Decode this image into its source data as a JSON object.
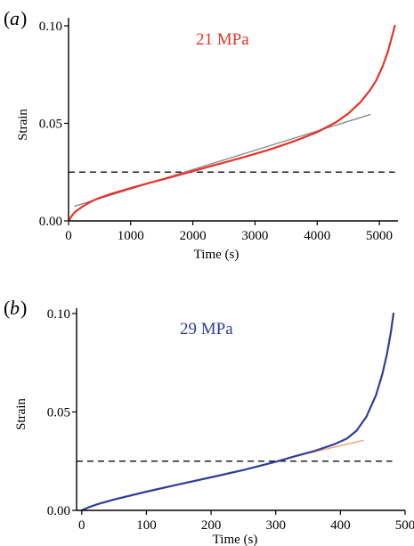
{
  "chart_data": [
    {
      "type": "line",
      "panel_label": "a",
      "annotation": "21 MPa",
      "xlabel": "Time (s)",
      "ylabel": "Strain",
      "xlim": [
        0,
        5300
      ],
      "ylim": [
        0,
        0.1
      ],
      "x_ticks": [
        0,
        1000,
        2000,
        3000,
        4000,
        5000
      ],
      "y_ticks": [
        0.0,
        0.05,
        0.1
      ],
      "y_tick_labels": [
        "0.00",
        "0.05",
        "0.10"
      ],
      "grid": false,
      "colors": {
        "main": "#e8322a",
        "fit": "#8a8a8a",
        "threshold": "#222222",
        "annotation": "#e8322a"
      },
      "series": [
        {
          "role": "main",
          "x": [
            0,
            50,
            100,
            200,
            300,
            400,
            500,
            700,
            1000,
            1300,
            1600,
            2000,
            2400,
            2800,
            3200,
            3600,
            4000,
            4300,
            4500,
            4700,
            4850,
            4950,
            5050,
            5130,
            5200,
            5250
          ],
          "values": [
            0.0,
            0.0025,
            0.0045,
            0.0068,
            0.0088,
            0.0105,
            0.0118,
            0.014,
            0.0168,
            0.0195,
            0.022,
            0.0255,
            0.029,
            0.0325,
            0.0362,
            0.0405,
            0.0455,
            0.0505,
            0.055,
            0.061,
            0.067,
            0.072,
            0.079,
            0.086,
            0.094,
            0.1
          ]
        },
        {
          "role": "fit",
          "x": [
            100,
            4850
          ],
          "values": [
            0.0075,
            0.0545
          ]
        },
        {
          "role": "threshold",
          "x": [
            0,
            5250
          ],
          "values": [
            0.025,
            0.025
          ]
        }
      ]
    },
    {
      "type": "line",
      "panel_label": "b",
      "annotation": "29 MPa",
      "xlabel": "Time (s)",
      "ylabel": "Strain",
      "xlim": [
        -8,
        500
      ],
      "ylim": [
        0,
        0.1
      ],
      "x_ticks": [
        0,
        100,
        200,
        300,
        400,
        500
      ],
      "y_ticks": [
        0.0,
        0.05,
        0.1
      ],
      "y_tick_labels": [
        "0.00",
        "0.05",
        "0.10"
      ],
      "grid": false,
      "colors": {
        "main": "#2e3e96",
        "fit": "#f0a27a",
        "threshold": "#222222",
        "annotation": "#2e3e96"
      },
      "series": [
        {
          "role": "main",
          "x": [
            0,
            10,
            25,
            50,
            100,
            150,
            200,
            250,
            300,
            330,
            360,
            390,
            410,
            425,
            440,
            455,
            465,
            472,
            478,
            482
          ],
          "values": [
            0.0,
            0.0015,
            0.0032,
            0.0055,
            0.0095,
            0.0132,
            0.0168,
            0.0205,
            0.0247,
            0.0275,
            0.0302,
            0.0335,
            0.0365,
            0.0405,
            0.0475,
            0.0585,
            0.0695,
            0.0795,
            0.0905,
            0.1
          ]
        },
        {
          "role": "fit",
          "x": [
            330,
            435
          ],
          "values": [
            0.0275,
            0.0355
          ]
        },
        {
          "role": "threshold",
          "x": [
            -8,
            480
          ],
          "values": [
            0.025,
            0.025
          ]
        }
      ]
    }
  ]
}
